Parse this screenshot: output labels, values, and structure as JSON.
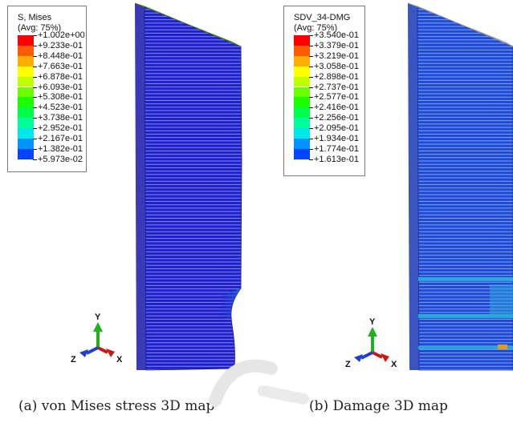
{
  "panels": [
    {
      "legend": {
        "title": "S, Mises",
        "subtitle": "(Avg: 75%)",
        "values": [
          "+1.002e+00",
          "+9.233e-01",
          "+8.448e-01",
          "+7.663e-01",
          "+6.878e-01",
          "+6.093e-01",
          "+5.308e-01",
          "+4.523e-01",
          "+3.738e-01",
          "+2.952e-01",
          "+2.167e-01",
          "+1.382e-01",
          "+5.973e-02"
        ]
      },
      "triad": {
        "y": "Y",
        "x": "X",
        "z": "Z"
      },
      "caption": "(a) von Mises stress 3D map"
    },
    {
      "legend": {
        "title": "SDV_34-DMG",
        "subtitle": "(Avg: 75%)",
        "values": [
          "+3.540e-01",
          "+3.379e-01",
          "+3.219e-01",
          "+3.058e-01",
          "+2.898e-01",
          "+2.737e-01",
          "+2.577e-01",
          "+2.416e-01",
          "+2.256e-01",
          "+2.095e-01",
          "+1.934e-01",
          "+1.774e-01",
          "+1.613e-01"
        ]
      },
      "triad": {
        "y": "Y",
        "x": "X",
        "z": "Z"
      },
      "caption": "(b) Damage 3D map"
    }
  ],
  "contour_colors": [
    "#ff0000",
    "#ff5a00",
    "#ffad00",
    "#ffff00",
    "#c0ff00",
    "#6bff00",
    "#1cff00",
    "#00ff4a",
    "#00ff9b",
    "#00e8ea",
    "#0094ff",
    "#0045ff",
    "#0000ff"
  ]
}
